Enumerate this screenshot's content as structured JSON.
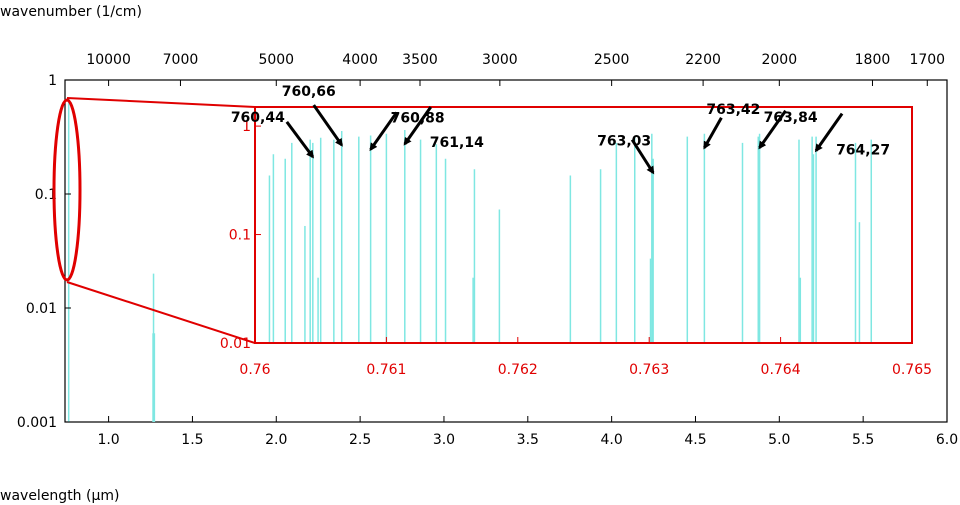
{
  "colors": {
    "line": "#7fe7e2",
    "inset_frame": "#e00000",
    "text": "#000000"
  },
  "chart_data": [
    {
      "type": "line",
      "title": "",
      "xlabel": "wavelength (µm)",
      "xlim": [
        0.74,
        6.0
      ],
      "ylim": [
        0.001,
        1
      ],
      "yscale": "log",
      "x_ticks": [
        "1.0",
        "1.5",
        "2.0",
        "2.5",
        "3.0",
        "3.5",
        "4.0",
        "4.5",
        "5.0",
        "5.5",
        "6.0"
      ],
      "y_ticks": [
        "0.001",
        "0.01",
        "0.1",
        "1"
      ],
      "secondary_xlabel": "wavenumber (1/cm)",
      "secondary_x_ticks": [
        "10000",
        "7000",
        "5000",
        "4000",
        "3500",
        "3000",
        "2500",
        "2200",
        "2000",
        "1800",
        "1700"
      ],
      "secondary_x_tick_wavelengths": [
        1.0,
        1.428571,
        2.0,
        2.5,
        2.857143,
        3.333333,
        4.0,
        4.545455,
        5.0,
        5.555556,
        5.882353
      ],
      "series": [
        {
          "x": [
            0.762,
            1.265,
            1.268,
            1.27,
            1.273
          ],
          "y": [
            0.7,
            0.006,
            0.02,
            0.003,
            0.006
          ]
        }
      ]
    },
    {
      "type": "line",
      "title": "",
      "xlim": [
        0.76,
        0.765
      ],
      "ylim": [
        0.01,
        1.5
      ],
      "yscale": "log",
      "x_ticks": [
        "0.76",
        "0.761",
        "0.762",
        "0.763",
        "0.764",
        "0.765"
      ],
      "y_ticks": [
        "0.01",
        "0.1",
        "1"
      ],
      "series": [
        {
          "x": [
            0.76011,
            0.76014,
            0.76023,
            0.76028,
            0.76038,
            0.76042,
            0.76044,
            0.76048,
            0.7605,
            0.7606,
            0.76066,
            0.76079,
            0.76088,
            0.761,
            0.76114,
            0.76126,
            0.76138,
            0.76145,
            0.76166,
            0.76167,
            0.76186,
            0.7624,
            0.76263,
            0.76275,
            0.76289,
            0.76301,
            0.76302,
            0.76303,
            0.76329,
            0.76342,
            0.76371,
            0.76383,
            0.76384,
            0.76414,
            0.76415,
            0.76424,
            0.76425,
            0.76427,
            0.76457,
            0.7646,
            0.76469
          ],
          "y": [
            0.35,
            0.55,
            0.5,
            0.7,
            0.12,
            0.75,
            0.7,
            0.04,
            0.78,
            0.75,
            0.9,
            0.8,
            0.82,
            0.85,
            0.92,
            0.75,
            0.68,
            0.5,
            0.04,
            0.4,
            0.17,
            0.35,
            0.4,
            0.7,
            0.8,
            0.06,
            0.85,
            0.5,
            0.8,
            0.85,
            0.7,
            0.8,
            0.85,
            0.75,
            0.04,
            0.8,
            0.55,
            0.8,
            0.7,
            0.13,
            0.75
          ]
        }
      ],
      "annotations": [
        {
          "label": "760,44",
          "x": 0.76044
        },
        {
          "label": "760,66",
          "x": 0.76066
        },
        {
          "label": "760,88",
          "x": 0.76088
        },
        {
          "label": "761,14",
          "x": 0.76114
        },
        {
          "label": "763,03",
          "x": 0.76303
        },
        {
          "label": "763,42",
          "x": 0.76342
        },
        {
          "label": "763,84",
          "x": 0.76384
        },
        {
          "label": "764,27",
          "x": 0.76427
        }
      ]
    }
  ]
}
